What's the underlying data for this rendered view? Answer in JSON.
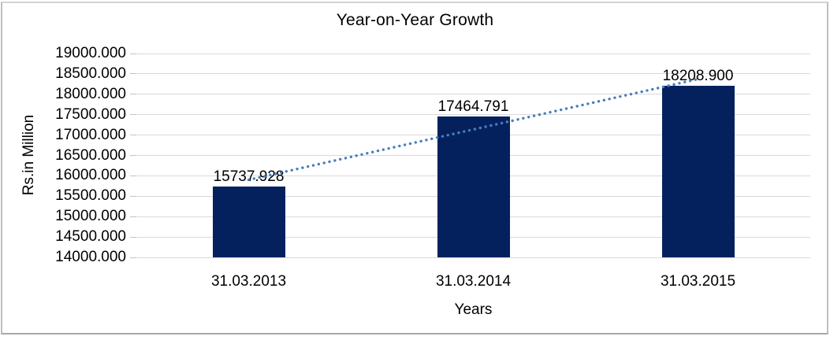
{
  "page": {
    "background": "#FFFFFF",
    "frame_border_color": "#BFBFBF"
  },
  "chart_data": {
    "type": "bar",
    "title": "Year-on-Year Growth",
    "xlabel": "Years",
    "ylabel": "Rs.in Million",
    "categories": [
      "31.03.2013",
      "31.03.2014",
      "31.03.2015"
    ],
    "values": [
      15737.928,
      17464.791,
      18208.9
    ],
    "data_labels": [
      "15737.928",
      "17464.791",
      "18208.900"
    ],
    "ylim": [
      14000,
      19000
    ],
    "ytick_step": 500,
    "ytick_labels": [
      "19000.000",
      "18500.000",
      "18000.000",
      "17500.000",
      "17000.000",
      "16500.000",
      "16000.000",
      "15500.000",
      "15000.000",
      "14500.000",
      "14000.000"
    ],
    "grid": true,
    "legend": "none",
    "bar_color": "#04215E",
    "gridline_color": "#D9D9D9",
    "tick_color": "#C3C3C3",
    "text_color": "#000000",
    "trendline": {
      "type": "linear",
      "style": "dotted",
      "color": "#4A7EBB"
    }
  }
}
